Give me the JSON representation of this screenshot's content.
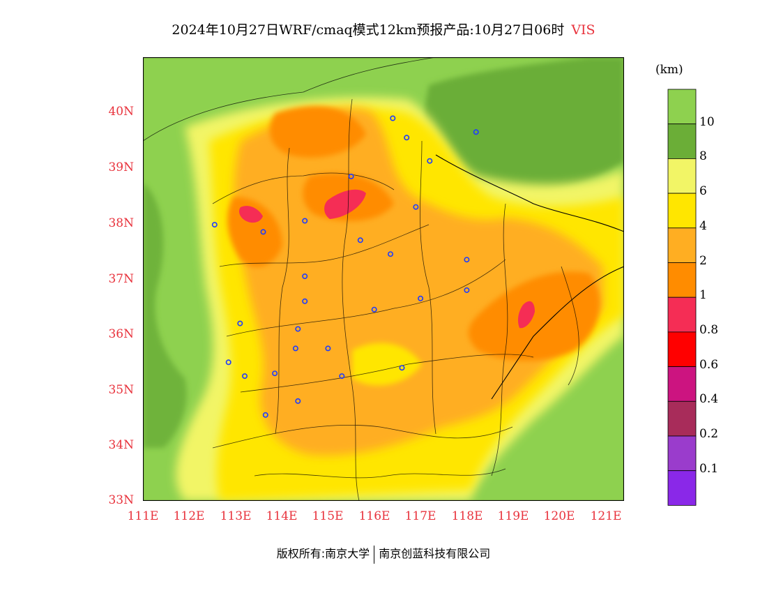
{
  "title": {
    "text": "2024年10月27日WRF/cmaq模式12km预报产品:10月27日06时",
    "variable": "VIS"
  },
  "axes": {
    "lat_ticks": [
      "40N",
      "39N",
      "38N",
      "37N",
      "36N",
      "35N",
      "34N",
      "33N"
    ],
    "lon_ticks": [
      "111E",
      "112E",
      "113E",
      "114E",
      "115E",
      "116E",
      "117E",
      "118E",
      "119E",
      "120E",
      "121E"
    ]
  },
  "colorbar": {
    "unit": "(km)",
    "labels": [
      "10",
      "8",
      "6",
      "4",
      "2",
      "1",
      "0.8",
      "0.6",
      "0.4",
      "0.2",
      "0.1"
    ],
    "colors": [
      "#8ed14f",
      "#6bae37",
      "#f2f566",
      "#ffe600",
      "#ffae22",
      "#ff8c00",
      "#f52d55",
      "#ff0000",
      "#cc1480",
      "#a82c5a",
      "#9a3ccc",
      "#8a28e8"
    ]
  },
  "footer": {
    "left": "版权所有:南京大学",
    "right": "南京创蓝科技有限公司"
  },
  "chart_data": {
    "type": "heatmap",
    "title": "2024年10月27日WRF/cmaq模式12km预报产品:10月27日06时 VIS",
    "unit": "(km)",
    "xlim": [
      111,
      121.4
    ],
    "ylim": [
      33,
      41
    ],
    "xticks": [
      "111E",
      "112E",
      "113E",
      "114E",
      "115E",
      "116E",
      "117E",
      "118E",
      "119E",
      "120E",
      "121E"
    ],
    "yticks": [
      "33N",
      "34N",
      "35N",
      "36N",
      "37N",
      "38N",
      "39N",
      "40N"
    ],
    "legend": "right",
    "levels": [
      0.1,
      0.2,
      0.4,
      0.6,
      0.8,
      1,
      2,
      4,
      6,
      8,
      10
    ],
    "cities": [
      {
        "lon": 116.4,
        "lat": 39.9
      },
      {
        "lon": 116.7,
        "lat": 39.55
      },
      {
        "lon": 117.2,
        "lat": 39.13
      },
      {
        "lon": 118.2,
        "lat": 39.65
      },
      {
        "lon": 115.5,
        "lat": 38.85
      },
      {
        "lon": 116.9,
        "lat": 38.3
      },
      {
        "lon": 114.5,
        "lat": 38.05
      },
      {
        "lon": 113.6,
        "lat": 37.85
      },
      {
        "lon": 112.55,
        "lat": 37.98
      },
      {
        "lon": 115.7,
        "lat": 37.7
      },
      {
        "lon": 116.35,
        "lat": 37.45
      },
      {
        "lon": 114.5,
        "lat": 37.05
      },
      {
        "lon": 114.5,
        "lat": 36.6
      },
      {
        "lon": 117.0,
        "lat": 36.65
      },
      {
        "lon": 118.0,
        "lat": 37.35
      },
      {
        "lon": 118.0,
        "lat": 36.8
      },
      {
        "lon": 116.0,
        "lat": 36.45
      },
      {
        "lon": 113.1,
        "lat": 36.2
      },
      {
        "lon": 114.35,
        "lat": 36.1
      },
      {
        "lon": 114.3,
        "lat": 35.75
      },
      {
        "lon": 115.0,
        "lat": 35.75
      },
      {
        "lon": 112.85,
        "lat": 35.5
      },
      {
        "lon": 113.2,
        "lat": 35.25
      },
      {
        "lon": 113.85,
        "lat": 35.3
      },
      {
        "lon": 115.3,
        "lat": 35.25
      },
      {
        "lon": 116.6,
        "lat": 35.4
      },
      {
        "lon": 114.35,
        "lat": 34.8
      },
      {
        "lon": 113.65,
        "lat": 34.55
      }
    ]
  }
}
